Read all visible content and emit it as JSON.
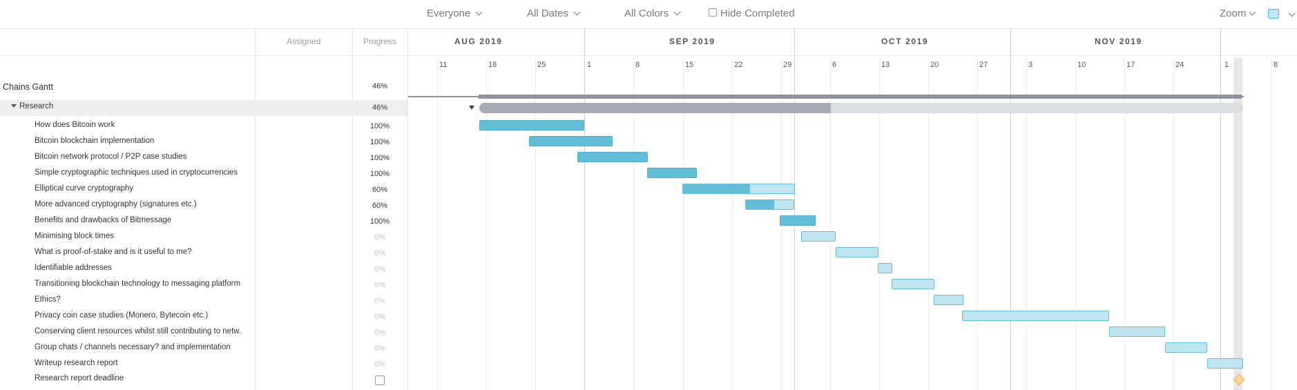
{
  "toolbar": {
    "people_filter": "Everyone",
    "date_filter": "All Dates",
    "color_filter": "All Colors",
    "hide_completed": "Hide Completed",
    "zoom": "Zoom"
  },
  "columns": {
    "assigned": "Assigned",
    "progress": "Progress"
  },
  "timeline": {
    "months": [
      "AUG 2019",
      "SEP 2019",
      "OCT 2019",
      "NOV 2019"
    ],
    "days": [
      "11",
      "18",
      "25",
      "1",
      "8",
      "15",
      "22",
      "29",
      "6",
      "13",
      "20",
      "27",
      "3",
      "10",
      "17",
      "24",
      "1",
      "8"
    ]
  },
  "project": {
    "name": "Chains Gantt",
    "progress": "46%",
    "progress_value": 0.46
  },
  "group": {
    "name": "Research",
    "progress": "46%",
    "progress_value": 0.46
  },
  "tasks": [
    {
      "name": "How does Bitcoin work",
      "progress": "100%",
      "progress_value": 1.0
    },
    {
      "name": "Bitcoin blockchain implementation",
      "progress": "100%",
      "progress_value": 1.0
    },
    {
      "name": "Bitcoin network protocol / P2P case studies",
      "progress": "100%",
      "progress_value": 1.0
    },
    {
      "name": "Simple cryptographic techniques used in cryptocurrencies",
      "progress": "100%",
      "progress_value": 1.0
    },
    {
      "name": "Elliptical curve cryptography",
      "progress": "60%",
      "progress_value": 0.6
    },
    {
      "name": "More advanced cryptography (signatures etc.)",
      "progress": "60%",
      "progress_value": 0.6
    },
    {
      "name": "Benefits and drawbacks of Bitmessage",
      "progress": "100%",
      "progress_value": 1.0
    },
    {
      "name": "Minimising block times",
      "progress": "0%",
      "progress_value": 0
    },
    {
      "name": "What is proof-of-stake and is it useful to me?",
      "progress": "0%",
      "progress_value": 0
    },
    {
      "name": "Identifiable addresses",
      "progress": "0%",
      "progress_value": 0
    },
    {
      "name": "Transitioning blockchain technology to messaging platform",
      "progress": "0%",
      "progress_value": 0
    },
    {
      "name": "Ethics?",
      "progress": "0%",
      "progress_value": 0
    },
    {
      "name": "Privacy coin case studies (Monero, Bytecoin etc.)",
      "progress": "0%",
      "progress_value": 0
    },
    {
      "name": "Conserving client resources whilst still contributing to netw.",
      "progress": "0%",
      "progress_value": 0
    },
    {
      "name": "Group chats / channels necessary? and implementation",
      "progress": "0%",
      "progress_value": 0
    },
    {
      "name": "Writeup research report",
      "progress": "0%",
      "progress_value": 0
    }
  ],
  "milestone": {
    "name": "Research report deadline"
  },
  "colors": {
    "done": "#62bfd7",
    "todo": "#bfe6f0",
    "summary": "#8f939d",
    "milestone": "#f2a93b"
  }
}
